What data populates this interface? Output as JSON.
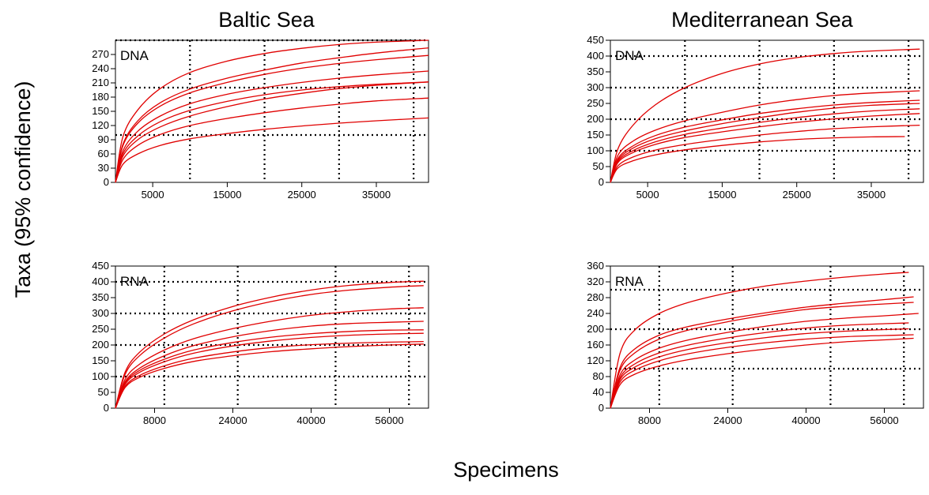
{
  "y_label": "Taxa (95% confidence)",
  "x_label": "Specimens",
  "columns": [
    "Baltic Sea",
    "Mediterranean Sea"
  ],
  "colors": {
    "curve": "#e00000",
    "axes": "#000000",
    "grid": "#000000"
  },
  "chart_data": [
    {
      "type": "line",
      "sea": "Baltic Sea",
      "label": "DNA",
      "xlim": [
        0,
        42000
      ],
      "ylim": [
        0,
        300
      ],
      "xticks": [
        5000,
        15000,
        25000,
        35000
      ],
      "yticks": [
        0,
        30,
        60,
        90,
        120,
        150,
        180,
        210,
        240,
        270
      ],
      "xgrid": [
        10000,
        20000,
        30000,
        40000
      ],
      "ygrid": [
        100,
        200,
        300
      ],
      "series": [
        {
          "x": [
            0,
            1000,
            3000,
            6000,
            10000,
            15000,
            20000,
            25000,
            30000,
            35000,
            42000
          ],
          "y": [
            0,
            96,
            153,
            198,
            232,
            256,
            272,
            283,
            291,
            296,
            300
          ]
        },
        {
          "x": [
            0,
            1000,
            3000,
            6000,
            10000,
            15000,
            20000,
            25000,
            30000,
            35000,
            42000
          ],
          "y": [
            0,
            80,
            130,
            168,
            197,
            220,
            237,
            252,
            263,
            273,
            284
          ]
        },
        {
          "x": [
            0,
            1000,
            3000,
            6000,
            10000,
            15000,
            20000,
            25000,
            30000,
            35000,
            42000
          ],
          "y": [
            0,
            77,
            125,
            161,
            189,
            211,
            228,
            241,
            251,
            259,
            268
          ]
        },
        {
          "x": [
            0,
            1000,
            3000,
            6000,
            10000,
            15000,
            20000,
            25000,
            30000,
            35000,
            42000
          ],
          "y": [
            0,
            66,
            108,
            140,
            166,
            186,
            200,
            211,
            220,
            227,
            235
          ]
        },
        {
          "x": [
            0,
            1000,
            3000,
            6000,
            10000,
            15000,
            20000,
            25000,
            30000,
            35000,
            42000
          ],
          "y": [
            0,
            60,
            98,
            128,
            152,
            171,
            185,
            195,
            202,
            207,
            212
          ]
        },
        {
          "x": [
            0,
            1000,
            3000,
            6000,
            10000,
            15000,
            20000,
            25000,
            30000,
            35000,
            42000
          ],
          "y": [
            0,
            55,
            90,
            117,
            140,
            160,
            176,
            188,
            198,
            205,
            212
          ]
        },
        {
          "x": [
            0,
            1000,
            3000,
            6000,
            10000,
            15000,
            20000,
            25000,
            30000,
            35000,
            42000
          ],
          "y": [
            0,
            48,
            78,
            101,
            120,
            135,
            147,
            157,
            165,
            172,
            178
          ]
        },
        {
          "x": [
            0,
            1000,
            3000,
            6000,
            10000,
            15000,
            20000,
            25000,
            30000,
            35000,
            42000
          ],
          "y": [
            0,
            38,
            60,
            78,
            92,
            103,
            112,
            119,
            125,
            130,
            136
          ]
        }
      ]
    },
    {
      "type": "line",
      "sea": "Mediterranean Sea",
      "label": "DNA",
      "xlim": [
        0,
        42000
      ],
      "ylim": [
        0,
        450
      ],
      "xticks": [
        5000,
        15000,
        25000,
        35000
      ],
      "yticks": [
        0,
        50,
        100,
        150,
        200,
        250,
        300,
        350,
        400,
        450
      ],
      "xgrid": [
        10000,
        20000,
        30000,
        40000
      ],
      "ygrid": [
        100,
        200,
        300,
        400
      ],
      "series": [
        {
          "x": [
            0,
            1000,
            3000,
            6000,
            10000,
            15000,
            20000,
            25000,
            30000,
            35000,
            41500
          ],
          "y": [
            0,
            105,
            180,
            245,
            300,
            345,
            375,
            395,
            408,
            416,
            422
          ]
        },
        {
          "x": [
            0,
            1000,
            3000,
            6000,
            10000,
            15000,
            20000,
            25000,
            30000,
            35000,
            41500
          ],
          "y": [
            0,
            85,
            130,
            165,
            195,
            222,
            245,
            262,
            275,
            283,
            290
          ]
        },
        {
          "x": [
            0,
            1000,
            3000,
            6000,
            10000,
            15000,
            20000,
            25000,
            30000,
            35000,
            41500
          ],
          "y": [
            0,
            75,
            115,
            148,
            175,
            198,
            218,
            233,
            245,
            253,
            260
          ]
        },
        {
          "x": [
            0,
            1000,
            3000,
            6000,
            10000,
            15000,
            20000,
            25000,
            30000,
            35000,
            41500
          ],
          "y": [
            0,
            70,
            108,
            138,
            163,
            186,
            205,
            222,
            235,
            244,
            250
          ]
        },
        {
          "x": [
            0,
            1000,
            3000,
            6000,
            10000,
            15000,
            20000,
            25000,
            30000,
            35000,
            41500
          ],
          "y": [
            0,
            66,
            100,
            128,
            152,
            172,
            190,
            205,
            217,
            226,
            233
          ]
        },
        {
          "x": [
            0,
            1000,
            3000,
            6000,
            10000,
            15000,
            20000,
            25000,
            30000,
            35000,
            41500
          ],
          "y": [
            0,
            62,
            94,
            120,
            142,
            160,
            176,
            190,
            201,
            210,
            218
          ]
        },
        {
          "x": [
            0,
            1000,
            3000,
            6000,
            10000,
            15000,
            20000,
            25000,
            30000,
            35000,
            41500
          ],
          "y": [
            0,
            52,
            80,
            102,
            120,
            136,
            150,
            161,
            170,
            176,
            181
          ]
        },
        {
          "x": [
            0,
            1000,
            3000,
            6000,
            10000,
            15000,
            20000,
            25000,
            30000,
            35000,
            39500
          ],
          "y": [
            0,
            45,
            68,
            87,
            103,
            117,
            128,
            136,
            141,
            144,
            145
          ]
        }
      ]
    },
    {
      "type": "line",
      "sea": "Baltic Sea",
      "label": "RNA",
      "xlim": [
        0,
        64000
      ],
      "ylim": [
        0,
        450
      ],
      "xticks": [
        8000,
        24000,
        40000,
        56000
      ],
      "yticks": [
        0,
        50,
        100,
        150,
        200,
        250,
        300,
        350,
        400,
        450
      ],
      "xgrid": [
        10000,
        25000,
        45000,
        60000
      ],
      "ygrid": [
        100,
        200,
        300,
        400
      ],
      "series": [
        {
          "x": [
            0,
            2000,
            5000,
            10000,
            16000,
            24000,
            32000,
            40000,
            48000,
            56000,
            63000
          ],
          "y": [
            0,
            115,
            178,
            235,
            280,
            322,
            352,
            374,
            389,
            398,
            402
          ]
        },
        {
          "x": [
            0,
            2000,
            5000,
            10000,
            16000,
            24000,
            32000,
            40000,
            48000,
            56000,
            63000
          ],
          "y": [
            0,
            108,
            167,
            222,
            267,
            308,
            338,
            360,
            374,
            383,
            388
          ]
        },
        {
          "x": [
            0,
            2000,
            5000,
            10000,
            16000,
            24000,
            32000,
            40000,
            48000,
            56000,
            63000
          ],
          "y": [
            0,
            92,
            140,
            184,
            220,
            252,
            276,
            294,
            306,
            314,
            318
          ]
        },
        {
          "x": [
            0,
            2000,
            5000,
            10000,
            16000,
            24000,
            32000,
            40000,
            48000,
            56000,
            63000
          ],
          "y": [
            0,
            84,
            127,
            166,
            198,
            226,
            246,
            260,
            268,
            272,
            275
          ]
        },
        {
          "x": [
            0,
            2000,
            5000,
            10000,
            16000,
            24000,
            32000,
            40000,
            48000,
            56000,
            63000
          ],
          "y": [
            0,
            80,
            120,
            155,
            184,
            208,
            225,
            236,
            243,
            247,
            248
          ]
        },
        {
          "x": [
            0,
            2000,
            5000,
            10000,
            16000,
            24000,
            32000,
            40000,
            48000,
            56000,
            63000
          ],
          "y": [
            0,
            76,
            114,
            147,
            174,
            197,
            213,
            224,
            231,
            235,
            237
          ]
        },
        {
          "x": [
            0,
            2000,
            5000,
            10000,
            16000,
            24000,
            32000,
            40000,
            48000,
            56000,
            63000
          ],
          "y": [
            0,
            70,
            104,
            134,
            158,
            178,
            192,
            201,
            206,
            209,
            211
          ]
        },
        {
          "x": [
            0,
            2000,
            5000,
            10000,
            16000,
            24000,
            32000,
            40000,
            48000,
            56000,
            63000
          ],
          "y": [
            0,
            66,
            98,
            126,
            148,
            166,
            179,
            188,
            195,
            200,
            203
          ]
        }
      ]
    },
    {
      "type": "line",
      "sea": "Mediterranean Sea",
      "label": "RNA",
      "xlim": [
        0,
        64000
      ],
      "ylim": [
        0,
        360
      ],
      "xticks": [
        8000,
        24000,
        40000,
        56000
      ],
      "yticks": [
        0,
        40,
        80,
        120,
        160,
        200,
        240,
        280,
        320,
        360
      ],
      "xgrid": [
        10000,
        25000,
        45000,
        60000
      ],
      "ygrid": [
        100,
        200,
        300
      ],
      "series": [
        {
          "x": [
            0,
            2000,
            5000,
            10000,
            16000,
            24000,
            32000,
            40000,
            48000,
            56000,
            61000
          ],
          "y": [
            0,
            140,
            198,
            240,
            268,
            292,
            310,
            322,
            332,
            340,
            344
          ]
        },
        {
          "x": [
            0,
            2000,
            5000,
            10000,
            16000,
            24000,
            32000,
            40000,
            48000,
            56000,
            62000
          ],
          "y": [
            0,
            104,
            150,
            185,
            207,
            226,
            242,
            256,
            266,
            275,
            282
          ]
        },
        {
          "x": [
            0,
            2000,
            5000,
            10000,
            16000,
            24000,
            32000,
            40000,
            48000,
            56000,
            62000
          ],
          "y": [
            0,
            97,
            140,
            175,
            198,
            219,
            236,
            250,
            258,
            264,
            268
          ]
        },
        {
          "x": [
            0,
            2000,
            5000,
            10000,
            16000,
            24000,
            32000,
            40000,
            48000,
            56000,
            63000
          ],
          "y": [
            0,
            85,
            122,
            152,
            173,
            192,
            208,
            220,
            228,
            234,
            240
          ]
        },
        {
          "x": [
            0,
            2000,
            5000,
            10000,
            16000,
            24000,
            32000,
            40000,
            48000,
            56000,
            61000
          ],
          "y": [
            0,
            78,
            112,
            140,
            160,
            178,
            192,
            203,
            210,
            214,
            216
          ]
        },
        {
          "x": [
            0,
            2000,
            5000,
            10000,
            16000,
            24000,
            32000,
            40000,
            48000,
            56000,
            61000
          ],
          "y": [
            0,
            73,
            104,
            130,
            149,
            166,
            179,
            189,
            195,
            199,
            201
          ]
        },
        {
          "x": [
            0,
            2000,
            5000,
            10000,
            16000,
            24000,
            32000,
            40000,
            48000,
            56000,
            62000
          ],
          "y": [
            0,
            67,
            96,
            120,
            138,
            154,
            166,
            175,
            181,
            184,
            186
          ]
        },
        {
          "x": [
            0,
            2000,
            5000,
            10000,
            16000,
            24000,
            32000,
            40000,
            48000,
            56000,
            62000
          ],
          "y": [
            0,
            60,
            86,
            107,
            123,
            138,
            150,
            160,
            168,
            173,
            177
          ]
        }
      ]
    }
  ]
}
